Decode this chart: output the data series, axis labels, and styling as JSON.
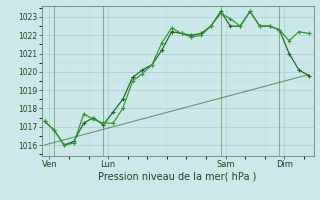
{
  "bg_color": "#cce8ea",
  "grid_color_major": "#aacfd2",
  "grid_color_minor": "#bbdadc",
  "line_dark": "#1a6618",
  "line_bright": "#2d9926",
  "xlabel": "Pression niveau de la mer( hPa )",
  "ylabel_ticks": [
    1016,
    1017,
    1018,
    1019,
    1020,
    1021,
    1022,
    1023
  ],
  "ylim": [
    1015.4,
    1023.6
  ],
  "xlim": [
    -0.3,
    27.5
  ],
  "xtick_labels": [
    "Ven",
    "Lun",
    "Sam",
    "Dim"
  ],
  "xtick_positions": [
    0.5,
    6.5,
    18.5,
    24.5
  ],
  "vline_positions": [
    1.0,
    6.0,
    18.0,
    24.0
  ],
  "series1_x": [
    0,
    1,
    2,
    3,
    4,
    5,
    6,
    7,
    8,
    9,
    10,
    11,
    12,
    13,
    14,
    15,
    16,
    17,
    18,
    19,
    20,
    21,
    22,
    23,
    24,
    25,
    26,
    27
  ],
  "series1_y": [
    1017.3,
    1016.8,
    1016.0,
    1016.1,
    1017.7,
    1017.4,
    1017.2,
    1017.2,
    1018.0,
    1019.5,
    1019.9,
    1020.4,
    1021.6,
    1022.4,
    1022.1,
    1021.9,
    1022.0,
    1022.5,
    1023.2,
    1022.9,
    1022.5,
    1023.3,
    1022.5,
    1022.5,
    1022.3,
    1021.7,
    1022.2,
    1022.1
  ],
  "series2_x": [
    0,
    1,
    2,
    3,
    4,
    5,
    6,
    7,
    8,
    9,
    10,
    11,
    12,
    13,
    14,
    15,
    16,
    17,
    18,
    19,
    20,
    21,
    22,
    23,
    24,
    25,
    26,
    27
  ],
  "series2_y": [
    1017.3,
    1016.8,
    1016.0,
    1016.2,
    1017.2,
    1017.5,
    1017.1,
    1017.8,
    1018.5,
    1019.7,
    1020.1,
    1020.4,
    1021.2,
    1022.2,
    1022.1,
    1022.0,
    1022.1,
    1022.5,
    1023.3,
    1022.5,
    1022.5,
    1023.3,
    1022.5,
    1022.5,
    1022.3,
    1021.0,
    1020.1,
    1019.8
  ],
  "trend_x": [
    0,
    27
  ],
  "trend_y": [
    1016.0,
    1019.85
  ],
  "figsize": [
    3.2,
    2.0
  ],
  "dpi": 100
}
